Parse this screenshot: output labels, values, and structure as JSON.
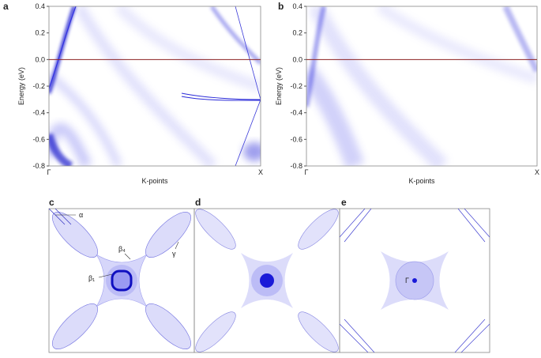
{
  "chart_data": [
    {
      "type": "spectral",
      "panel": "a",
      "ylabel": "Energy (eV)",
      "xlabel": "K-points",
      "categories": [
        "Γ",
        "X"
      ],
      "ylim": [
        -0.8,
        0.4
      ],
      "yticks": [
        -0.8,
        -0.6,
        -0.4,
        -0.2,
        {
          "value": 0,
          "label": "0.0"
        },
        0.2,
        0.4
      ]
    },
    {
      "type": "spectral",
      "panel": "b",
      "ylabel": "Energy (eV)",
      "xlabel": "K-points",
      "categories": [
        "Γ",
        "X"
      ],
      "ylim": [
        -0.8,
        0.4
      ],
      "yticks": [
        -0.8,
        -0.6,
        -0.4,
        -0.2,
        {
          "value": 0,
          "label": "0.0"
        },
        0.2,
        0.4
      ]
    }
  ],
  "fermi_surfaces": [
    {
      "panel": "c",
      "labels": [
        "α",
        "β₄",
        "β₁",
        "γ"
      ]
    },
    {
      "panel": "d"
    },
    {
      "panel": "e",
      "labels": [
        "Γ"
      ]
    }
  ]
}
